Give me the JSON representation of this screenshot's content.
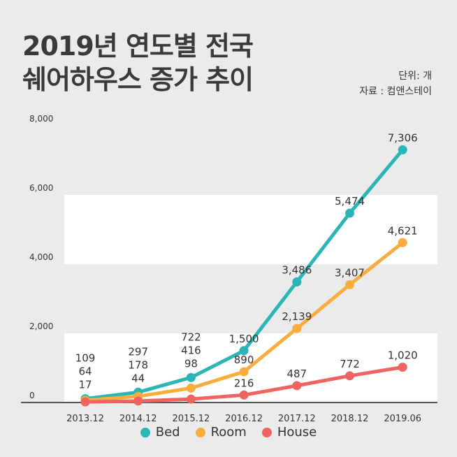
{
  "title": {
    "line1": "2019년 연도별 전국",
    "line2": "쉐어하우스 증가 추이"
  },
  "unit": "단위: 개",
  "source": "자료 : 컴앤스테이",
  "colors": {
    "background": "#ebebeb",
    "band": "#ffffff",
    "bed": "#2bb5b8",
    "room": "#f9ad3c",
    "house": "#ef6461"
  },
  "chart_data": {
    "type": "line",
    "categories": [
      "2013.12",
      "2014.12",
      "2015.12",
      "2016.12",
      "2017.12",
      "2018.12",
      "2019.06"
    ],
    "ylim": [
      0,
      8000
    ],
    "yticks": [
      "0",
      "2,000",
      "4,000",
      "6,000",
      "8,000"
    ],
    "ytick_values": [
      0,
      2000,
      4000,
      6000,
      8000
    ],
    "grid": "alternating white bands",
    "series": [
      {
        "name": "Bed",
        "color": "#2bb5b8",
        "values": [
          109,
          297,
          722,
          1500,
          3486,
          5474,
          7306
        ],
        "labels": [
          "109",
          "297",
          "722",
          "1,500",
          "3,486",
          "5,474",
          "7,306"
        ]
      },
      {
        "name": "Room",
        "color": "#f9ad3c",
        "values": [
          64,
          178,
          416,
          890,
          2139,
          3407,
          4621
        ],
        "labels": [
          "64",
          "178",
          "416",
          "890",
          "2,139",
          "3,407",
          "4,621"
        ]
      },
      {
        "name": "House",
        "color": "#ef6461",
        "values": [
          17,
          44,
          98,
          216,
          487,
          772,
          1020
        ],
        "labels": [
          "17",
          "44",
          "98",
          "216",
          "487",
          "772",
          "1,020"
        ]
      }
    ],
    "legend": [
      "Bed",
      "Room",
      "House"
    ],
    "legend_position": "bottom"
  }
}
